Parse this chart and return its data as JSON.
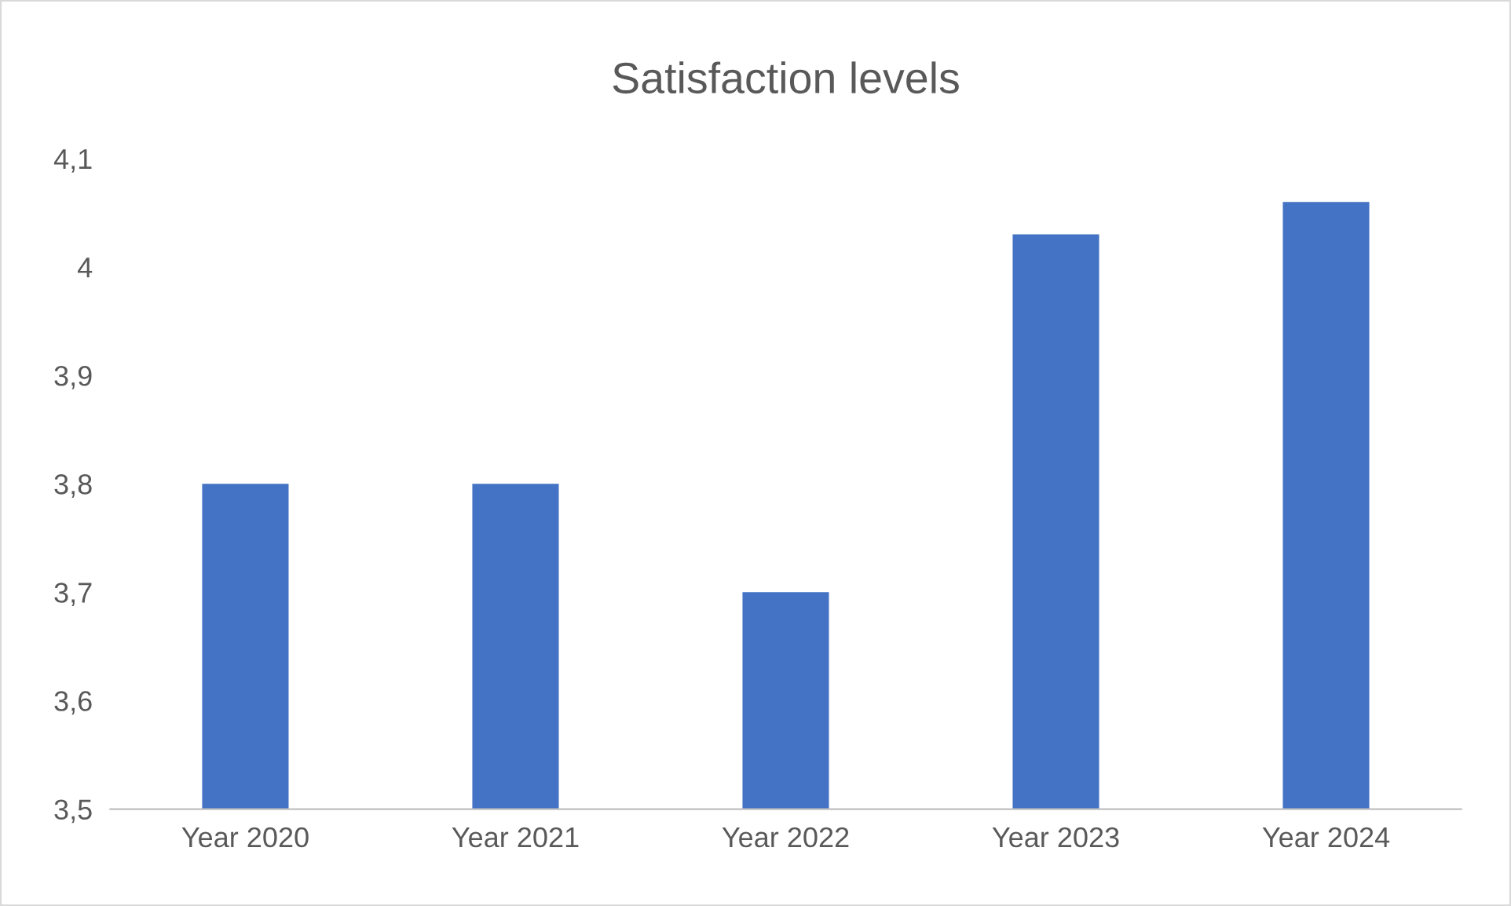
{
  "chart_data": {
    "type": "bar",
    "title": "Satisfaction levels",
    "categories": [
      "Year 2020",
      "Year 2021",
      "Year 2022",
      "Year 2023",
      "Year 2024"
    ],
    "values": [
      3.8,
      3.8,
      3.7,
      4.03,
      4.06
    ],
    "color": "#4472c4",
    "ylim": [
      3.5,
      4.1
    ],
    "yticks": [
      {
        "value": 3.5,
        "label": "3,5"
      },
      {
        "value": 3.6,
        "label": "3,6"
      },
      {
        "value": 3.7,
        "label": "3,7"
      },
      {
        "value": 3.8,
        "label": "3,8"
      },
      {
        "value": 3.9,
        "label": "3,9"
      },
      {
        "value": 4,
        "label": "4"
      },
      {
        "value": 4.1,
        "label": "4,1"
      }
    ],
    "grid": false,
    "legend": false
  }
}
